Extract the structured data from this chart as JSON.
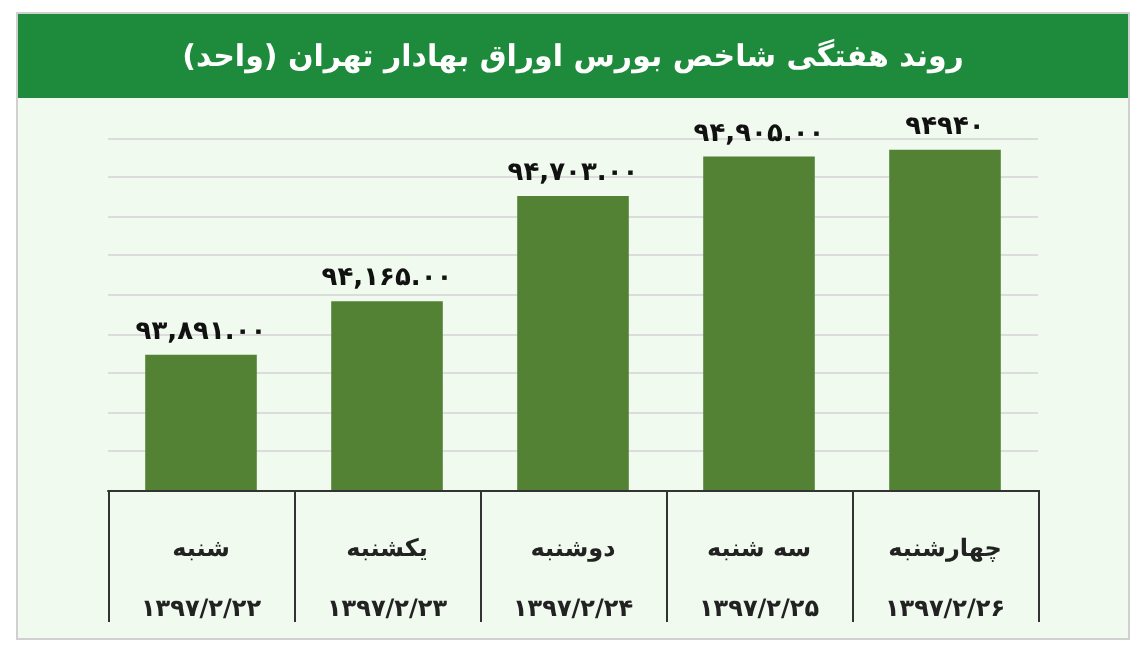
{
  "chart_data": {
    "type": "bar",
    "title": "روند هفتگی شاخص بورس اوراق بهادار تهران (واحد)",
    "categories": [
      "شنبه\n۱۳۹۷/۲/۲۲",
      "یکشنبه\n۱۳۹۷/۲/۲۳",
      "دوشنبه\n۱۳۹۷/۲/۲۴",
      "سه شنبه\n۱۳۹۷/۲/۲۵",
      "چهارشنبه\n۱۳۹۷/۲/۲۶"
    ],
    "values": [
      93891,
      94165,
      94703,
      94905,
      94940
    ],
    "value_labels": [
      "۹۳,۸۹۱.۰۰",
      "۹۴,۱۶۵.۰۰",
      "۹۴,۷۰۳.۰۰",
      "۹۴,۹۰۵.۰۰",
      "۹۴۹۴۰"
    ],
    "color": "#548235",
    "ylim": [
      93200,
      95000
    ],
    "yticks": [
      {
        "value": 93200,
        "label": null
      },
      {
        "value": 93400,
        "label": null
      },
      {
        "value": 93600,
        "label": null
      },
      {
        "value": 93800,
        "label": null
      },
      {
        "value": 94000,
        "label": null
      },
      {
        "value": 94200,
        "label": null
      },
      {
        "value": 94400,
        "label": null
      },
      {
        "value": 94600,
        "label": null
      },
      {
        "value": 94800,
        "label": null
      },
      {
        "value": 95000,
        "label": null
      }
    ],
    "grid": "y",
    "tick_labels": "x"
  }
}
